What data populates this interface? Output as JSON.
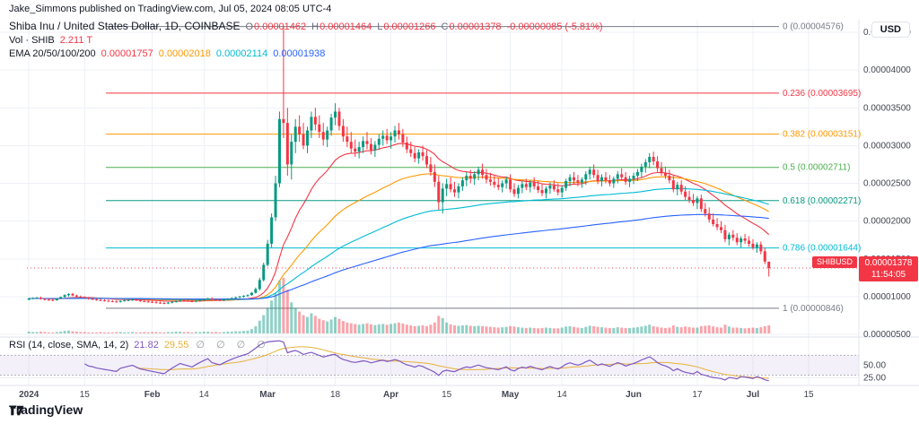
{
  "attribution": "Jake_Simmons published on TradingView.com, Jul 05, 2024 08:05 UTC-4",
  "watermark": {
    "brand": "TradingView"
  },
  "header": {
    "symbol_title": "Shiba Inu / United States Dollar, 1D, COINBASE",
    "ohlc": {
      "o_label": "O",
      "o": "0.00001462",
      "h_label": "H",
      "h": "0.00001464",
      "l_label": "L",
      "l": "0.00001266",
      "c_label": "C",
      "c": "0.00001378",
      "change": "-0.00000085 (-5.81%)"
    },
    "volume_label": "Vol · SHIB",
    "volume_value": "2.211 T",
    "ema_label": "EMA 20/50/100/200",
    "ema_values": [
      "0.00001757",
      "0.00002018",
      "0.00002114",
      "0.00001938"
    ]
  },
  "rsi_legend": {
    "label": "RSI (14, close, SMA, 14, 2)",
    "rsi_value": "21.82",
    "ma_value": "29.55",
    "empties": "∅ ∅ ∅ ∅"
  },
  "price_scale": {
    "currency_button": "USD",
    "symbol_badge": "SHIBUSD",
    "last_price": "0.00001378",
    "countdown": "11:54:05"
  },
  "colors": {
    "up": "#089981",
    "down": "#f23645",
    "vol_up": "rgba(8,153,129,0.45)",
    "vol_down": "rgba(242,54,69,0.45)",
    "grid": "#eef1f6",
    "border": "#e0e3eb",
    "axis_text": "#434651",
    "rsi_line": "#7e57c2",
    "rsi_ma": "#e7b13a",
    "rsi_band": "rgba(126,87,194,0.09)",
    "band_edge": "#787b86"
  },
  "chart_data": {
    "type": "candlestick",
    "title": "Shiba Inu / United States Dollar",
    "symbol": "SHIBUSD",
    "interval": "1D",
    "exchange": "COINBASE",
    "start_date": "2024-01-01",
    "end_date": "2024-07-05",
    "price_multiplier": 1e-08,
    "price_axis_ticks": [
      4500,
      4000,
      3500,
      3000,
      2500,
      2000,
      1500,
      1000,
      500
    ],
    "time_ticks": [
      {
        "i": 0,
        "label": "2024",
        "major": true
      },
      {
        "i": 14,
        "label": "15",
        "major": false
      },
      {
        "i": 31,
        "label": "Feb",
        "major": true
      },
      {
        "i": 44,
        "label": "14",
        "major": false
      },
      {
        "i": 60,
        "label": "Mar",
        "major": true
      },
      {
        "i": 77,
        "label": "18",
        "major": false
      },
      {
        "i": 91,
        "label": "Apr",
        "major": true
      },
      {
        "i": 105,
        "label": "15",
        "major": false
      },
      {
        "i": 121,
        "label": "May",
        "major": true
      },
      {
        "i": 134,
        "label": "14",
        "major": false
      },
      {
        "i": 152,
        "label": "Jun",
        "major": true
      },
      {
        "i": 168,
        "label": "17",
        "major": false
      },
      {
        "i": 182,
        "label": "Jul",
        "major": true
      },
      {
        "i": 196,
        "label": "15",
        "major": false
      }
    ],
    "fib_levels": [
      {
        "level": "0",
        "price": 4.576e-05,
        "color": "#787b86"
      },
      {
        "level": "0.236",
        "price": 3.695e-05,
        "color": "#f23645"
      },
      {
        "level": "0.382",
        "price": 3.151e-05,
        "color": "#ff9800"
      },
      {
        "level": "0.5",
        "price": 2.711e-05,
        "color": "#4caf50"
      },
      {
        "level": "0.618",
        "price": 2.271e-05,
        "color": "#089981"
      },
      {
        "level": "0.786",
        "price": 1.644e-05,
        "color": "#00bcd4"
      },
      {
        "level": "1",
        "price": 8.46e-06,
        "color": "#787b86"
      }
    ],
    "ema_periods": [
      20,
      50,
      100,
      200
    ],
    "ema_colors": [
      "#f23645",
      "#ff9800",
      "#00bcd4",
      "#2962ff"
    ],
    "ema_last_values": [
      1.757e-05,
      2.018e-05,
      2.114e-05,
      1.938e-05
    ],
    "rsi": {
      "period": 14,
      "smoothing": 14,
      "band": [
        30,
        70
      ],
      "axis_ticks": [
        50,
        25
      ],
      "last_value": 21.82,
      "last_ma": 29.55
    },
    "last_volume_trillions": 2.211,
    "candles": [
      [
        960,
        985,
        950,
        975
      ],
      [
        975,
        990,
        965,
        980
      ],
      [
        980,
        995,
        970,
        985
      ],
      [
        985,
        1000,
        960,
        970
      ],
      [
        970,
        980,
        950,
        960
      ],
      [
        960,
        975,
        945,
        955
      ],
      [
        955,
        970,
        940,
        950
      ],
      [
        950,
        980,
        945,
        975
      ],
      [
        975,
        1000,
        970,
        995
      ],
      [
        995,
        1030,
        985,
        1020
      ],
      [
        1020,
        1045,
        1000,
        1035
      ],
      [
        1035,
        1050,
        1005,
        1015
      ],
      [
        1015,
        1025,
        990,
        1000
      ],
      [
        1000,
        1015,
        985,
        995
      ],
      [
        995,
        1005,
        975,
        985
      ],
      [
        985,
        995,
        960,
        970
      ],
      [
        970,
        985,
        955,
        965
      ],
      [
        965,
        975,
        945,
        955
      ],
      [
        955,
        970,
        940,
        950
      ],
      [
        950,
        965,
        935,
        945
      ],
      [
        945,
        960,
        930,
        940
      ],
      [
        940,
        955,
        925,
        935
      ],
      [
        935,
        950,
        920,
        930
      ],
      [
        930,
        950,
        920,
        945
      ],
      [
        945,
        960,
        935,
        950
      ],
      [
        950,
        965,
        940,
        955
      ],
      [
        955,
        970,
        945,
        960
      ],
      [
        960,
        970,
        940,
        950
      ],
      [
        950,
        960,
        930,
        940
      ],
      [
        940,
        955,
        925,
        935
      ],
      [
        935,
        950,
        920,
        930
      ],
      [
        930,
        945,
        915,
        925
      ],
      [
        925,
        940,
        910,
        920
      ],
      [
        920,
        935,
        905,
        915
      ],
      [
        915,
        930,
        900,
        910
      ],
      [
        910,
        930,
        900,
        920
      ],
      [
        920,
        940,
        910,
        930
      ],
      [
        930,
        950,
        920,
        940
      ],
      [
        940,
        960,
        930,
        950
      ],
      [
        950,
        965,
        935,
        945
      ],
      [
        945,
        960,
        930,
        940
      ],
      [
        940,
        955,
        925,
        935
      ],
      [
        935,
        955,
        925,
        945
      ],
      [
        945,
        965,
        935,
        955
      ],
      [
        955,
        975,
        945,
        965
      ],
      [
        965,
        985,
        955,
        975
      ],
      [
        975,
        990,
        950,
        960
      ],
      [
        960,
        975,
        945,
        955
      ],
      [
        955,
        970,
        940,
        950
      ],
      [
        950,
        970,
        940,
        960
      ],
      [
        960,
        980,
        950,
        970
      ],
      [
        970,
        990,
        960,
        980
      ],
      [
        980,
        1000,
        970,
        990
      ],
      [
        990,
        1010,
        980,
        1000
      ],
      [
        1000,
        1020,
        985,
        1010
      ],
      [
        1010,
        1030,
        995,
        1020
      ],
      [
        1020,
        1060,
        1010,
        1050
      ],
      [
        1050,
        1120,
        1040,
        1100
      ],
      [
        1100,
        1250,
        1080,
        1220
      ],
      [
        1220,
        1450,
        1200,
        1420
      ],
      [
        1420,
        1750,
        1400,
        1700
      ],
      [
        1700,
        2100,
        1650,
        2050
      ],
      [
        2050,
        2600,
        2000,
        2500
      ],
      [
        2500,
        3450,
        2450,
        3350
      ],
      [
        3350,
        4576,
        3100,
        3300
      ],
      [
        3300,
        3500,
        2600,
        2750
      ],
      [
        2750,
        3150,
        2550,
        3050
      ],
      [
        3050,
        3350,
        2900,
        3250
      ],
      [
        3250,
        3400,
        3050,
        3150
      ],
      [
        3150,
        3300,
        2950,
        3000
      ],
      [
        3000,
        3250,
        2900,
        3200
      ],
      [
        3200,
        3450,
        3100,
        3380
      ],
      [
        3380,
        3500,
        3200,
        3280
      ],
      [
        3280,
        3400,
        3100,
        3180
      ],
      [
        3180,
        3300,
        3000,
        3080
      ],
      [
        3080,
        3250,
        2980,
        3200
      ],
      [
        3200,
        3420,
        3130,
        3370
      ],
      [
        3370,
        3560,
        3270,
        3450
      ],
      [
        3450,
        3500,
        3200,
        3260
      ],
      [
        3260,
        3350,
        3050,
        3120
      ],
      [
        3120,
        3250,
        2980,
        3050
      ],
      [
        3050,
        3180,
        2900,
        2960
      ],
      [
        2960,
        3080,
        2850,
        2920
      ],
      [
        2920,
        3050,
        2830,
        2980
      ],
      [
        2980,
        3120,
        2900,
        3060
      ],
      [
        3060,
        3180,
        2950,
        3020
      ],
      [
        3020,
        3100,
        2880,
        2940
      ],
      [
        2940,
        3060,
        2850,
        3010
      ],
      [
        3010,
        3150,
        2950,
        3090
      ],
      [
        3090,
        3200,
        3000,
        3130
      ],
      [
        3130,
        3220,
        3020,
        3070
      ],
      [
        3070,
        3180,
        2960,
        3120
      ],
      [
        3120,
        3260,
        3040,
        3200
      ],
      [
        3200,
        3300,
        3080,
        3150
      ],
      [
        3150,
        3220,
        2980,
        3040
      ],
      [
        3040,
        3120,
        2900,
        2950
      ],
      [
        2950,
        3050,
        2850,
        2900
      ],
      [
        2900,
        2980,
        2780,
        2830
      ],
      [
        2830,
        2950,
        2760,
        2910
      ],
      [
        2910,
        3000,
        2800,
        2860
      ],
      [
        2860,
        2940,
        2700,
        2750
      ],
      [
        2750,
        2850,
        2600,
        2650
      ],
      [
        2650,
        2750,
        2450,
        2520
      ],
      [
        2520,
        2600,
        2150,
        2250
      ],
      [
        2250,
        2500,
        2100,
        2430
      ],
      [
        2430,
        2560,
        2330,
        2490
      ],
      [
        2490,
        2580,
        2380,
        2420
      ],
      [
        2420,
        2520,
        2320,
        2380
      ],
      [
        2380,
        2500,
        2300,
        2460
      ],
      [
        2460,
        2580,
        2400,
        2540
      ],
      [
        2540,
        2650,
        2460,
        2600
      ],
      [
        2600,
        2680,
        2500,
        2560
      ],
      [
        2560,
        2660,
        2480,
        2620
      ],
      [
        2620,
        2720,
        2540,
        2680
      ],
      [
        2680,
        2760,
        2560,
        2610
      ],
      [
        2610,
        2690,
        2500,
        2550
      ],
      [
        2550,
        2640,
        2470,
        2520
      ],
      [
        2520,
        2600,
        2440,
        2480
      ],
      [
        2480,
        2570,
        2410,
        2450
      ],
      [
        2450,
        2540,
        2380,
        2500
      ],
      [
        2500,
        2590,
        2430,
        2550
      ],
      [
        2550,
        2620,
        2380,
        2420
      ],
      [
        2420,
        2500,
        2320,
        2360
      ],
      [
        2360,
        2480,
        2300,
        2440
      ],
      [
        2440,
        2530,
        2370,
        2490
      ],
      [
        2490,
        2560,
        2410,
        2450
      ],
      [
        2450,
        2540,
        2380,
        2510
      ],
      [
        2510,
        2580,
        2420,
        2460
      ],
      [
        2460,
        2530,
        2370,
        2410
      ],
      [
        2410,
        2490,
        2330,
        2370
      ],
      [
        2370,
        2460,
        2300,
        2430
      ],
      [
        2430,
        2510,
        2360,
        2470
      ],
      [
        2470,
        2540,
        2390,
        2420
      ],
      [
        2420,
        2500,
        2340,
        2380
      ],
      [
        2380,
        2470,
        2310,
        2440
      ],
      [
        2440,
        2560,
        2400,
        2530
      ],
      [
        2530,
        2620,
        2460,
        2580
      ],
      [
        2580,
        2650,
        2490,
        2540
      ],
      [
        2540,
        2610,
        2460,
        2510
      ],
      [
        2510,
        2580,
        2440,
        2550
      ],
      [
        2550,
        2660,
        2480,
        2620
      ],
      [
        2620,
        2720,
        2550,
        2680
      ],
      [
        2680,
        2750,
        2570,
        2610
      ],
      [
        2610,
        2680,
        2490,
        2530
      ],
      [
        2530,
        2620,
        2460,
        2580
      ],
      [
        2580,
        2650,
        2500,
        2540
      ],
      [
        2540,
        2610,
        2460,
        2500
      ],
      [
        2500,
        2590,
        2440,
        2560
      ],
      [
        2560,
        2660,
        2500,
        2620
      ],
      [
        2620,
        2700,
        2540,
        2580
      ],
      [
        2580,
        2650,
        2480,
        2520
      ],
      [
        2520,
        2600,
        2450,
        2560
      ],
      [
        2560,
        2640,
        2490,
        2600
      ],
      [
        2600,
        2690,
        2530,
        2650
      ],
      [
        2650,
        2760,
        2580,
        2720
      ],
      [
        2720,
        2820,
        2640,
        2780
      ],
      [
        2780,
        2900,
        2700,
        2850
      ],
      [
        2850,
        2920,
        2740,
        2790
      ],
      [
        2790,
        2860,
        2650,
        2700
      ],
      [
        2700,
        2780,
        2600,
        2640
      ],
      [
        2640,
        2720,
        2560,
        2600
      ],
      [
        2600,
        2680,
        2500,
        2540
      ],
      [
        2540,
        2600,
        2380,
        2420
      ],
      [
        2420,
        2520,
        2340,
        2480
      ],
      [
        2480,
        2540,
        2350,
        2390
      ],
      [
        2390,
        2460,
        2280,
        2320
      ],
      [
        2320,
        2400,
        2240,
        2280
      ],
      [
        2280,
        2360,
        2200,
        2240
      ],
      [
        2240,
        2330,
        2160,
        2300
      ],
      [
        2300,
        2350,
        2120,
        2160
      ],
      [
        2160,
        2240,
        2060,
        2100
      ],
      [
        2100,
        2180,
        1980,
        2020
      ],
      [
        2020,
        2100,
        1930,
        1960
      ],
      [
        1960,
        2040,
        1880,
        1920
      ],
      [
        1920,
        2000,
        1840,
        1880
      ],
      [
        1880,
        1950,
        1720,
        1760
      ],
      [
        1760,
        1850,
        1680,
        1820
      ],
      [
        1820,
        1880,
        1740,
        1780
      ],
      [
        1780,
        1840,
        1680,
        1720
      ],
      [
        1720,
        1800,
        1650,
        1770
      ],
      [
        1770,
        1830,
        1700,
        1740
      ],
      [
        1740,
        1800,
        1660,
        1700
      ],
      [
        1700,
        1760,
        1620,
        1650
      ],
      [
        1650,
        1720,
        1580,
        1690
      ],
      [
        1690,
        1730,
        1560,
        1600
      ],
      [
        1600,
        1650,
        1430,
        1463
      ],
      [
        1462,
        1464,
        1266,
        1378
      ]
    ],
    "volumes": [
      0.5,
      0.4,
      0.4,
      0.5,
      0.4,
      0.3,
      0.3,
      0.4,
      0.5,
      0.7,
      0.8,
      0.6,
      0.5,
      0.4,
      0.4,
      0.3,
      0.3,
      0.3,
      0.4,
      0.3,
      0.3,
      0.3,
      0.4,
      0.4,
      0.3,
      0.3,
      0.4,
      0.3,
      0.3,
      0.4,
      0.3,
      0.4,
      0.4,
      0.3,
      0.3,
      0.4,
      0.4,
      0.5,
      0.5,
      0.4,
      0.4,
      0.3,
      0.4,
      0.4,
      0.5,
      0.5,
      0.4,
      0.4,
      0.3,
      0.4,
      0.5,
      0.5,
      0.6,
      0.6,
      0.7,
      0.8,
      1.2,
      2.0,
      3.5,
      5.0,
      7.0,
      9.0,
      11.0,
      14.5,
      15.2,
      12.0,
      8.5,
      7.0,
      6.0,
      5.0,
      4.5,
      5.5,
      4.8,
      4.0,
      3.6,
      3.3,
      3.8,
      4.5,
      4.0,
      3.4,
      3.0,
      2.8,
      2.6,
      2.4,
      2.6,
      2.8,
      2.5,
      2.3,
      2.5,
      2.6,
      2.4,
      2.6,
      2.8,
      3.0,
      2.7,
      2.4,
      2.2,
      2.0,
      2.1,
      2.2,
      2.0,
      2.4,
      3.0,
      4.8,
      4.2,
      3.0,
      2.5,
      2.2,
      2.1,
      2.2,
      2.3,
      2.1,
      2.0,
      2.1,
      2.0,
      1.9,
      1.8,
      1.7,
      1.6,
      1.7,
      1.8,
      2.0,
      1.9,
      1.7,
      1.6,
      1.5,
      1.6,
      1.5,
      1.4,
      1.5,
      1.6,
      1.5,
      1.4,
      1.4,
      1.6,
      1.9,
      2.0,
      1.8,
      1.6,
      1.5,
      1.8,
      2.1,
      2.0,
      1.8,
      1.7,
      1.6,
      1.5,
      1.5,
      1.7,
      1.6,
      1.5,
      1.5,
      1.6,
      1.7,
      1.9,
      2.1,
      2.4,
      2.0,
      1.8,
      1.6,
      1.5,
      1.6,
      2.2,
      1.8,
      1.7,
      1.9,
      1.7,
      1.6,
      1.6,
      2.0,
      2.1,
      2.2,
      1.9,
      1.7,
      1.6,
      2.4,
      1.9,
      1.6,
      1.6,
      1.5,
      1.4,
      1.5,
      1.6,
      1.5,
      1.7,
      2.0,
      2.211
    ]
  }
}
